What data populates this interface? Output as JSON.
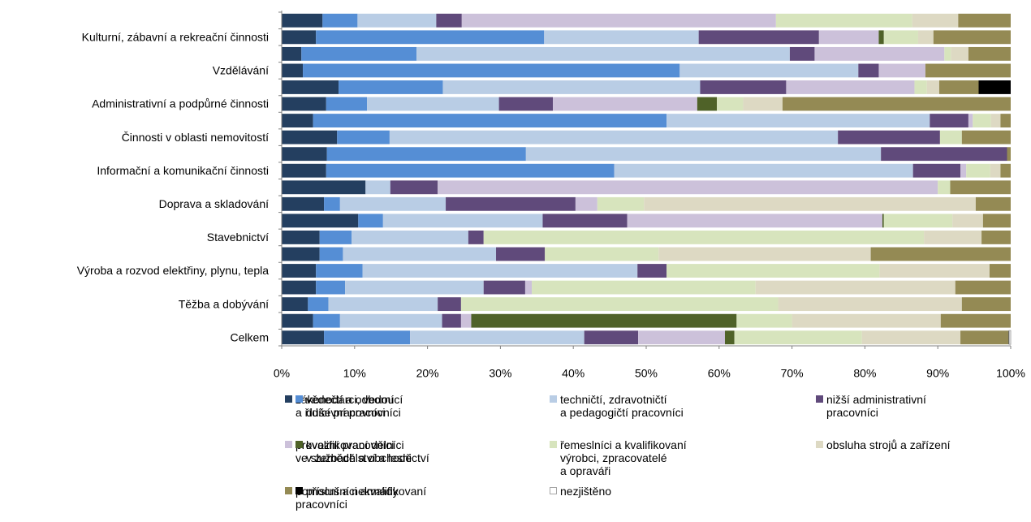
{
  "chart_data": {
    "type": "stacked-bar-horizontal",
    "categories": [
      null,
      "Kulturní, zábavní a rekreační činnosti",
      null,
      "Vzdělávání",
      null,
      "Administrativní a podpůrné činnosti",
      null,
      "Činnosti v oblasti nemovitostí",
      null,
      "Informační a komunikační činnosti",
      null,
      "Doprava a skladování",
      null,
      "Stavebnictví",
      null,
      "Výroba a rozvod elektřiny, plynu, tepla",
      null,
      "Těžba a dobývání",
      null,
      "Celkem"
    ],
    "series": [
      {
        "name": "zákonodárci, vedoucí\na řídící pracovníci",
        "color": "#243f60",
        "values": [
          5.6,
          4.7,
          2.7,
          2.9,
          7.8,
          6.1,
          4.3,
          7.6,
          6.2,
          6.1,
          11.5,
          5.8,
          10.5,
          5.2,
          5.2,
          4.7,
          4.7,
          3.6,
          4.3,
          5.8
        ]
      },
      {
        "name": "vědečtí a odborní\nduševní pracovníci",
        "color": "#558ed5",
        "values": [
          4.8,
          31.3,
          15.8,
          51.7,
          14.3,
          5.6,
          48.5,
          7.2,
          27.3,
          39.5,
          0,
          2.2,
          3.4,
          4.4,
          3.2,
          6.4,
          4.0,
          2.8,
          3.7,
          11.8
        ]
      },
      {
        "name": "techničtí, zdravotničtí\na pedagogičtí pracovníci",
        "color": "#b9cde5",
        "values": [
          10.8,
          21.2,
          51.2,
          24.5,
          35.3,
          18.1,
          36.1,
          61.5,
          48.7,
          41.0,
          3.4,
          14.5,
          21.9,
          16.0,
          21.0,
          37.7,
          19.0,
          15.0,
          14.0,
          23.9
        ]
      },
      {
        "name": "nižší administrativní\npracovníci",
        "color": "#604a7b",
        "values": [
          3.5,
          16.5,
          3.4,
          2.8,
          11.8,
          7.4,
          5.3,
          14.0,
          17.3,
          6.5,
          6.5,
          17.8,
          11.6,
          2.1,
          6.7,
          4.0,
          5.7,
          3.2,
          2.6,
          7.4
        ]
      },
      {
        "name": "provozní pracovníci\nve službách a obchodě",
        "color": "#ccc1da",
        "values": [
          43.1,
          8.2,
          17.8,
          6.4,
          17.6,
          19.8,
          0.6,
          0,
          0,
          0.8,
          68.6,
          3.0,
          35.0,
          0,
          0,
          0,
          0.9,
          0,
          1.4,
          11.9
        ]
      },
      {
        "name": "kvalifikovaní dělníci\nv zemědělství a lesnictví",
        "color": "#4f6228",
        "values": [
          0,
          0.7,
          0,
          0,
          0,
          2.7,
          0,
          0,
          0,
          0,
          0,
          0,
          0.2,
          0,
          0,
          0,
          0,
          0,
          36.4,
          1.3
        ]
      },
      {
        "name": "řemeslníci a kvalifikovaní\nvýrobci, zpracovatelé\na opraváři",
        "color": "#d7e4bd",
        "values": [
          18.7,
          4.7,
          0.9,
          0,
          1.7,
          3.6,
          2.5,
          3.0,
          0,
          3.3,
          1.7,
          6.4,
          9.4,
          60.4,
          15.6,
          29.2,
          30.7,
          43.5,
          7.6,
          17.5
        ]
      },
      {
        "name": "obsluha strojů a zařízení",
        "color": "#ddd9c3",
        "values": [
          6.3,
          2.1,
          2.4,
          0,
          1.7,
          5.4,
          1.3,
          0,
          0,
          1.4,
          0,
          45.5,
          4.2,
          7.9,
          29.1,
          15.1,
          27.4,
          25.2,
          20.4,
          13.5
        ]
      },
      {
        "name": "pomocní a nekvalifikovaní\npracovníci",
        "color": "#948a54",
        "values": [
          7.2,
          10.6,
          5.8,
          11.7,
          5.4,
          31.3,
          1.4,
          6.7,
          0.5,
          1.4,
          8.3,
          4.8,
          3.8,
          4.0,
          19.2,
          2.9,
          7.6,
          6.7,
          9.6,
          6.6
        ]
      },
      {
        "name": "příslušníci armády",
        "color": "#000000",
        "values": [
          0,
          0,
          0,
          0,
          4.4,
          0,
          0,
          0,
          0,
          0,
          0,
          0,
          0,
          0,
          0,
          0,
          0,
          0,
          0,
          0.1
        ]
      },
      {
        "name": "nezjištěno",
        "color": "#ffffff",
        "values": [
          0,
          0,
          0,
          0,
          0,
          0,
          0,
          0,
          0,
          0,
          0,
          0,
          0,
          0,
          0,
          0,
          0,
          0,
          0,
          0.2
        ]
      }
    ],
    "xlim": [
      0,
      100
    ],
    "xticks": [
      {
        "value": 0,
        "label": "0%"
      },
      {
        "value": 10,
        "label": "10%"
      },
      {
        "value": 20,
        "label": "20%"
      },
      {
        "value": 30,
        "label": "30%"
      },
      {
        "value": 40,
        "label": "40%"
      },
      {
        "value": 50,
        "label": "50%"
      },
      {
        "value": 60,
        "label": "60%"
      },
      {
        "value": 70,
        "label": "70%"
      },
      {
        "value": 80,
        "label": "80%"
      },
      {
        "value": 90,
        "label": "90%"
      },
      {
        "value": 100,
        "label": "100%"
      }
    ]
  }
}
